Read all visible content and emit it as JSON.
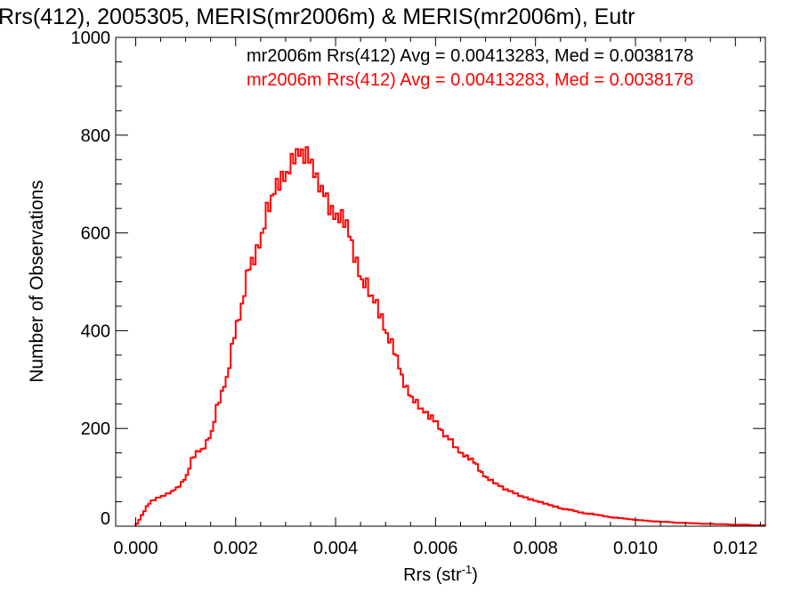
{
  "chart_data": {
    "type": "histogram",
    "title": "Rrs(412), 2005305, MERIS(mr2006m) & MERIS(mr2006m), Eutr",
    "xlabel": "Rrs (str",
    "xlabel_sup": "-1",
    "xlabel_close": ")",
    "ylabel": "Number of Observations",
    "xlim": [
      -0.0004,
      0.0126
    ],
    "ylim": [
      0,
      1000
    ],
    "x_ticks": [
      0.0,
      0.002,
      0.004,
      0.006,
      0.008,
      0.01,
      0.012
    ],
    "x_tick_labels": [
      "0.000",
      "0.002",
      "0.004",
      "0.006",
      "0.008",
      "0.010",
      "0.012"
    ],
    "y_ticks": [
      0,
      200,
      400,
      600,
      800,
      1000
    ],
    "y_tick_labels": [
      "0",
      "200",
      "400",
      "600",
      "800",
      "1000"
    ],
    "annotations": [
      {
        "text": "mr2006m Rrs(412) Avg = 0.00413283, Med = 0.0038178",
        "color": "#000000"
      },
      {
        "text": "mr2006m Rrs(412) Avg = 0.00413283, Med = 0.0038178",
        "color": "#ff0000"
      }
    ],
    "grid": false,
    "series": [
      {
        "color": "#ff0000",
        "bin_width": 5e-05,
        "points": [
          [
            0.0,
            5
          ],
          [
            0.0001,
            22
          ],
          [
            0.0002,
            40
          ],
          [
            0.0003,
            52
          ],
          [
            0.0004,
            58
          ],
          [
            0.0005,
            62
          ],
          [
            0.0006,
            65
          ],
          [
            0.0007,
            70
          ],
          [
            0.0008,
            78
          ],
          [
            0.0009,
            90
          ],
          [
            0.001,
            105
          ],
          [
            0.0011,
            135
          ],
          [
            0.0012,
            150
          ],
          [
            0.0013,
            155
          ],
          [
            0.0014,
            175
          ],
          [
            0.0015,
            195
          ],
          [
            0.0016,
            240
          ],
          [
            0.0017,
            270
          ],
          [
            0.0018,
            300
          ],
          [
            0.0019,
            370
          ],
          [
            0.002,
            420
          ],
          [
            0.0021,
            440
          ],
          [
            0.0022,
            510
          ],
          [
            0.0023,
            540
          ],
          [
            0.0024,
            570
          ],
          [
            0.0025,
            600
          ],
          [
            0.0026,
            640
          ],
          [
            0.0027,
            660
          ],
          [
            0.0028,
            700
          ],
          [
            0.0029,
            720
          ],
          [
            0.003,
            725
          ],
          [
            0.0031,
            740
          ],
          [
            0.0032,
            755
          ],
          [
            0.0033,
            760
          ],
          [
            0.0034,
            770
          ],
          [
            0.0035,
            750
          ],
          [
            0.0036,
            700
          ],
          [
            0.0037,
            680
          ],
          [
            0.0038,
            670
          ],
          [
            0.0039,
            650
          ],
          [
            0.004,
            640
          ],
          [
            0.0041,
            625
          ],
          [
            0.0042,
            610
          ],
          [
            0.0043,
            575
          ],
          [
            0.0044,
            545
          ],
          [
            0.0045,
            505
          ],
          [
            0.0046,
            490
          ],
          [
            0.0047,
            460
          ],
          [
            0.0048,
            455
          ],
          [
            0.0049,
            430
          ],
          [
            0.005,
            395
          ],
          [
            0.0051,
            370
          ],
          [
            0.0052,
            340
          ],
          [
            0.0053,
            305
          ],
          [
            0.0054,
            285
          ],
          [
            0.0055,
            265
          ],
          [
            0.0056,
            250
          ],
          [
            0.0057,
            235
          ],
          [
            0.0058,
            230
          ],
          [
            0.0059,
            225
          ],
          [
            0.006,
            215
          ],
          [
            0.0061,
            190
          ],
          [
            0.0062,
            180
          ],
          [
            0.0063,
            175
          ],
          [
            0.0064,
            160
          ],
          [
            0.0065,
            150
          ],
          [
            0.0066,
            140
          ],
          [
            0.0067,
            135
          ],
          [
            0.0068,
            125
          ],
          [
            0.0069,
            110
          ],
          [
            0.007,
            100
          ],
          [
            0.0071,
            92
          ],
          [
            0.0072,
            85
          ],
          [
            0.0073,
            80
          ],
          [
            0.0074,
            75
          ],
          [
            0.0075,
            72
          ],
          [
            0.0076,
            65
          ],
          [
            0.0077,
            60
          ],
          [
            0.0078,
            58
          ],
          [
            0.0079,
            55
          ],
          [
            0.008,
            52
          ],
          [
            0.0081,
            48
          ],
          [
            0.0082,
            45
          ],
          [
            0.0083,
            42
          ],
          [
            0.0084,
            40
          ],
          [
            0.0085,
            36
          ],
          [
            0.0086,
            34
          ],
          [
            0.0087,
            33
          ],
          [
            0.0088,
            30
          ],
          [
            0.0089,
            28
          ],
          [
            0.009,
            26
          ],
          [
            0.0091,
            25
          ],
          [
            0.0092,
            23
          ],
          [
            0.0093,
            22
          ],
          [
            0.0094,
            20
          ],
          [
            0.0095,
            18
          ],
          [
            0.0096,
            17
          ],
          [
            0.0097,
            16
          ],
          [
            0.0098,
            15
          ],
          [
            0.0099,
            14
          ],
          [
            0.01,
            13
          ],
          [
            0.0101,
            12
          ],
          [
            0.0102,
            11
          ],
          [
            0.0103,
            10
          ],
          [
            0.0104,
            10
          ],
          [
            0.0105,
            9
          ],
          [
            0.0106,
            9
          ],
          [
            0.0107,
            8
          ],
          [
            0.0108,
            7
          ],
          [
            0.0109,
            7
          ],
          [
            0.011,
            7
          ],
          [
            0.0111,
            6
          ],
          [
            0.0112,
            6
          ],
          [
            0.0113,
            5
          ],
          [
            0.0114,
            5
          ],
          [
            0.0115,
            5
          ],
          [
            0.0116,
            4
          ],
          [
            0.0117,
            4
          ],
          [
            0.0118,
            4
          ],
          [
            0.0119,
            3
          ],
          [
            0.012,
            3
          ],
          [
            0.0121,
            3
          ],
          [
            0.0122,
            3
          ],
          [
            0.0123,
            2
          ],
          [
            0.0124,
            2
          ],
          [
            0.0125,
            2
          ]
        ]
      }
    ]
  }
}
